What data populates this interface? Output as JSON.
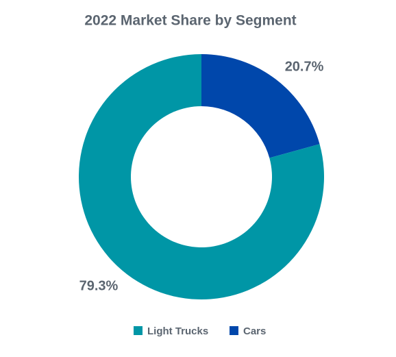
{
  "chart_data": {
    "type": "donut",
    "title": "2022 Market Share by Segment",
    "categories": [
      "Light Trucks",
      "Cars"
    ],
    "values": [
      79.3,
      20.7
    ],
    "value_labels": [
      "79.3%",
      "20.7%"
    ],
    "colors": [
      "#0096a6",
      "#0047ab"
    ],
    "legend": "bottom"
  }
}
